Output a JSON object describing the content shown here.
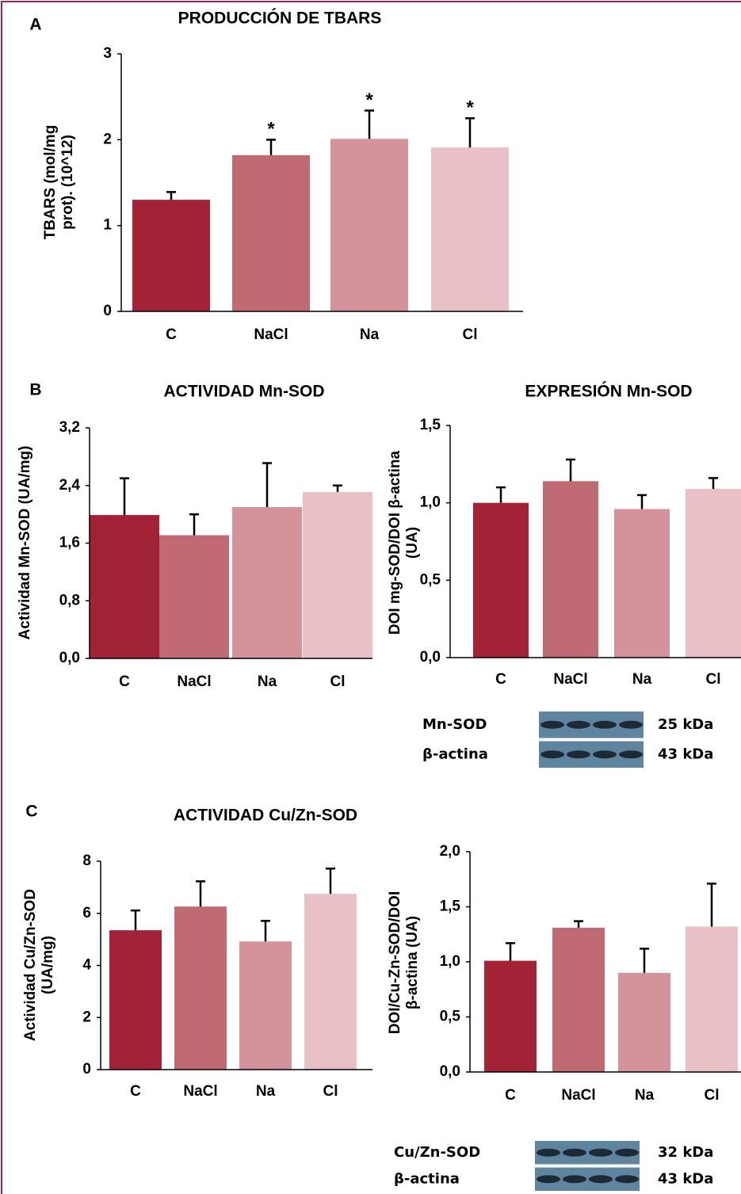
{
  "chart_data": [
    {
      "type": "bar",
      "panel": "A",
      "title": "PRODUCCIÓN DE TBARS",
      "ylabel": [
        "TBARS (mol/mg",
        "prot). (10^12)"
      ],
      "categories": [
        "C",
        "NaCl",
        "Na",
        "Cl"
      ],
      "values": [
        1.3,
        1.82,
        2.01,
        1.91
      ],
      "errors": [
        0.09,
        0.18,
        0.33,
        0.34
      ],
      "significance": [
        null,
        "*",
        "*",
        "*"
      ],
      "colors": [
        "#a12335",
        "#c06a73",
        "#d4939a",
        "#e8c0c5"
      ],
      "ylim": [
        0,
        3
      ],
      "yticks": [
        0,
        1,
        2,
        3
      ]
    },
    {
      "type": "bar",
      "panel": "B",
      "title": "ACTIVIDAD Mn-SOD",
      "ylabel": [
        "Actividad Mn-SOD (UA/mg)"
      ],
      "categories": [
        "C",
        "NaCl",
        "Na",
        "Cl"
      ],
      "values": [
        1.99,
        1.71,
        2.1,
        2.31
      ],
      "errors": [
        0.51,
        0.29,
        0.61,
        0.09
      ],
      "colors": [
        "#a12335",
        "#c06a73",
        "#d4939a",
        "#e8c0c5"
      ],
      "ylim": [
        0,
        3.2
      ],
      "yticks": [
        {
          "value": 0,
          "label": "0,0"
        },
        {
          "value": 0.8,
          "label": "0,8"
        },
        {
          "value": 1.6,
          "label": "1,6"
        },
        {
          "value": 2.4,
          "label": "2,4"
        },
        {
          "value": 3.2,
          "label": "3,2"
        }
      ]
    },
    {
      "type": "bar",
      "title": "EXPRESIÓN Mn-SOD",
      "ylabel": [
        "DOI mg-SOD/DOI β-actina",
        "(UA)"
      ],
      "categories": [
        "C",
        "NaCl",
        "Na",
        "Cl"
      ],
      "values": [
        1.0,
        1.14,
        0.96,
        1.09
      ],
      "errors": [
        0.1,
        0.14,
        0.09,
        0.07
      ],
      "colors": [
        "#a12335",
        "#c06a73",
        "#d4939a",
        "#e8c0c5"
      ],
      "ylim": [
        0,
        1.5
      ],
      "yticks": [
        {
          "value": 0,
          "label": "0,0"
        },
        {
          "value": 0.5,
          "label": "0,5"
        },
        {
          "value": 1,
          "label": "1,0"
        },
        {
          "value": 1.5,
          "label": "1,5"
        }
      ],
      "blot": {
        "labels": [
          "Mn-SOD",
          "β-actina"
        ],
        "sizes": [
          "25 kDa",
          "43 kDa"
        ]
      }
    },
    {
      "type": "bar",
      "panel": "C",
      "title": "ACTIVIDAD Cu/Zn-SOD",
      "ylabel": [
        "Actividad Cu/Zn-SOD",
        "(UA/mg)"
      ],
      "categories": [
        "C",
        "NaCl",
        "Na",
        "Cl"
      ],
      "values": [
        5.35,
        6.26,
        4.92,
        6.75
      ],
      "errors": [
        0.76,
        0.97,
        0.79,
        0.97
      ],
      "colors": [
        "#a12335",
        "#c06a73",
        "#d4939a",
        "#e8c0c5"
      ],
      "ylim": [
        0,
        8
      ],
      "yticks": [
        0,
        2,
        4,
        6,
        8
      ]
    },
    {
      "type": "bar",
      "ylabel": [
        "DOI/Cu-Zn-SOD/DOI",
        "β-actina (UA)"
      ],
      "categories": [
        "C",
        "NaCl",
        "Na",
        "Cl"
      ],
      "values": [
        1.01,
        1.31,
        0.9,
        1.32
      ],
      "errors": [
        0.16,
        0.06,
        0.22,
        0.39
      ],
      "colors": [
        "#a12335",
        "#c06a73",
        "#d4939a",
        "#e8c0c5"
      ],
      "ylim": [
        0,
        2
      ],
      "yticks": [
        {
          "value": 0,
          "label": "0,0"
        },
        {
          "value": 0.5,
          "label": "0,5"
        },
        {
          "value": 1,
          "label": "1,0"
        },
        {
          "value": 1.5,
          "label": "1,5"
        },
        {
          "value": 2,
          "label": "2,0"
        }
      ],
      "blot": {
        "labels": [
          "Cu/Zn-SOD",
          "β-actina"
        ],
        "sizes": [
          "32 kDa",
          "43 kDa"
        ]
      }
    }
  ]
}
